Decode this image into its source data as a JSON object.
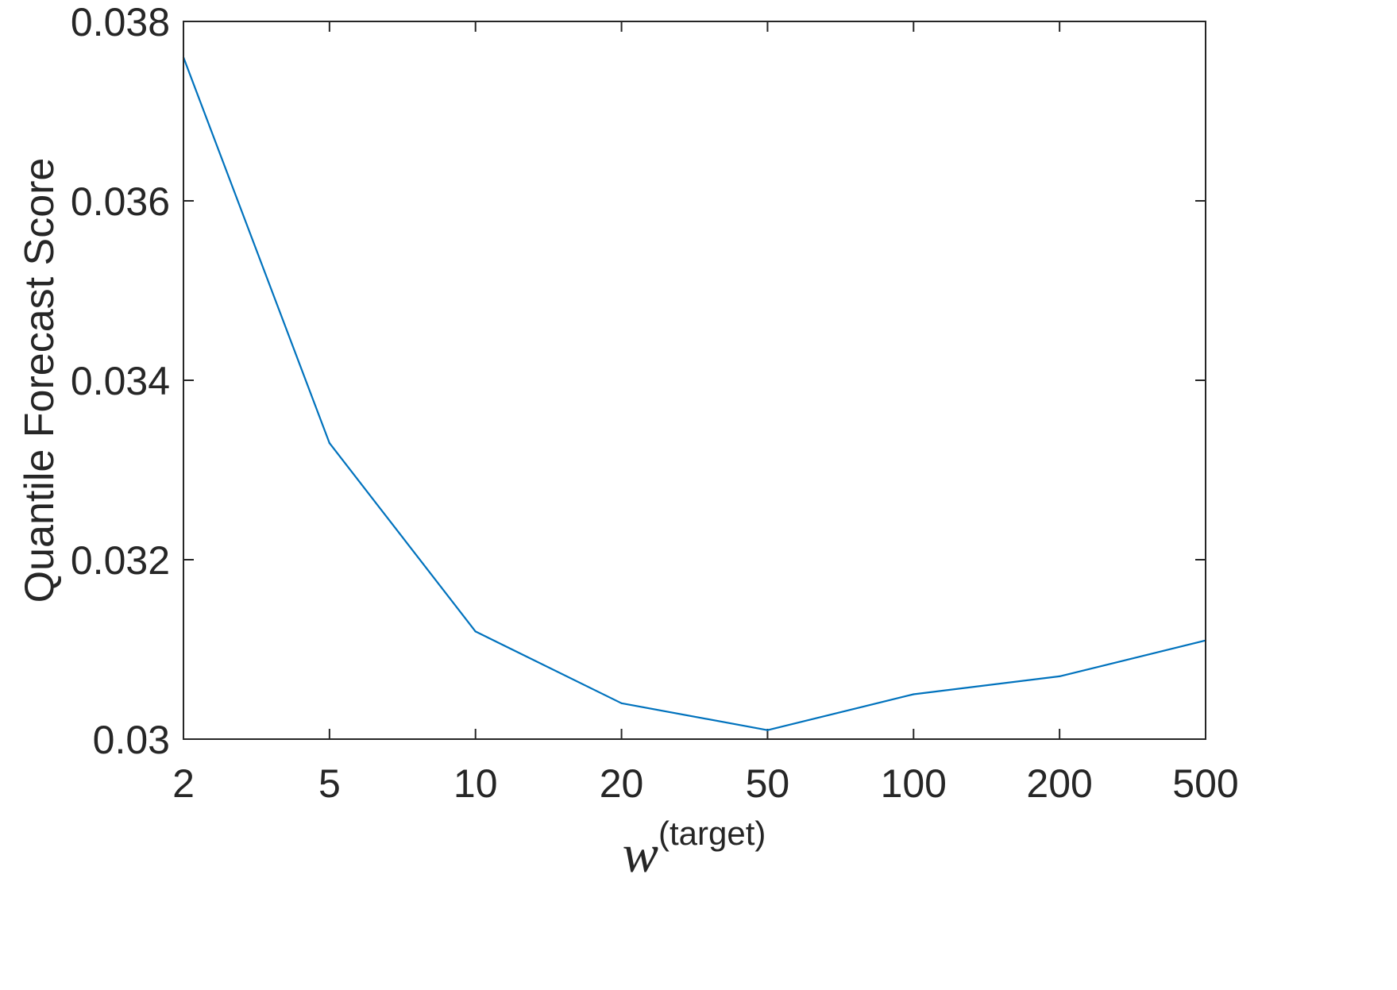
{
  "chart_data": {
    "type": "line",
    "title": "",
    "xlabel": "w",
    "xlabel_superscript": "(target)",
    "ylabel": "Quantile Forecast Score",
    "categories": [
      "2",
      "5",
      "10",
      "20",
      "50",
      "100",
      "200",
      "500"
    ],
    "series": [
      {
        "values": [
          0.0376,
          0.0333,
          0.0312,
          0.0304,
          0.0301,
          0.0305,
          0.0307,
          0.0311
        ]
      }
    ],
    "ylim": [
      0.03,
      0.038
    ],
    "yticks": [
      0.03,
      0.032,
      0.034,
      0.036,
      0.038
    ],
    "ytick_labels": [
      "0.03",
      "0.032",
      "0.034",
      "0.036",
      "0.038"
    ],
    "grid": false,
    "box": true,
    "colors": {
      "line": "#0072BD",
      "axes": "#262626",
      "background": "#ffffff"
    }
  }
}
